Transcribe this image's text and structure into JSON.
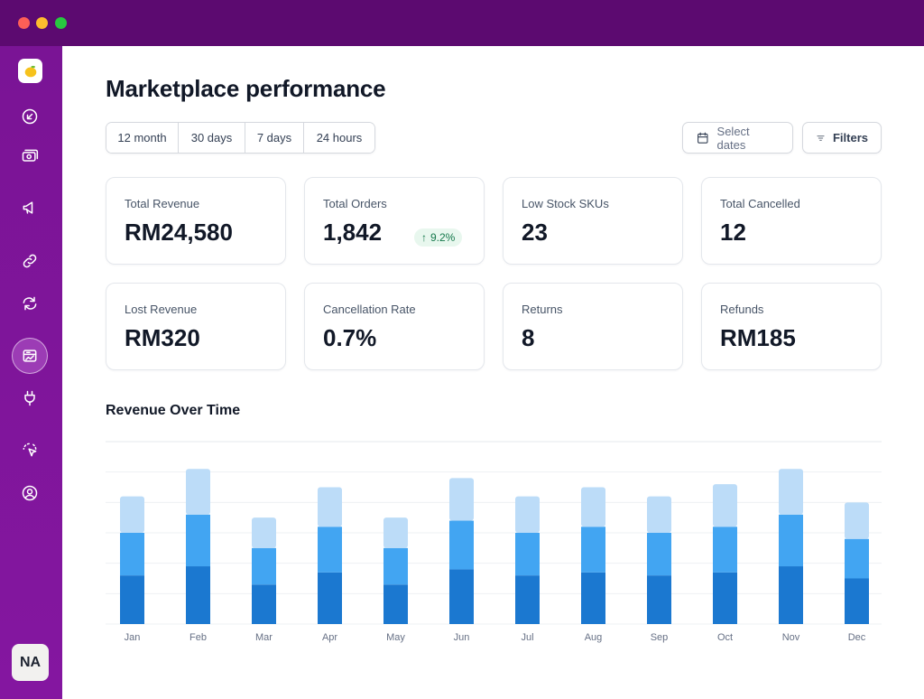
{
  "page": {
    "title": "Marketplace performance"
  },
  "user": {
    "initials": "NA"
  },
  "ranges": [
    "12 month",
    "30 days",
    "7 days",
    "24 hours"
  ],
  "actions": {
    "select_dates": "Select dates",
    "filters": "Filters"
  },
  "stats": [
    {
      "label": "Total Revenue",
      "value": "RM24,580"
    },
    {
      "label": "Total Orders",
      "value": "1,842",
      "change": "9.2%"
    },
    {
      "label": "Low Stock SKUs",
      "value": "23"
    },
    {
      "label": "Total Cancelled",
      "value": "12"
    },
    {
      "label": "Lost Revenue",
      "value": "RM320"
    },
    {
      "label": "Cancellation Rate",
      "value": "0.7%"
    },
    {
      "label": "Returns",
      "value": "8"
    },
    {
      "label": "Refunds",
      "value": "RM185"
    }
  ],
  "chart_section": {
    "title": "Revenue Over Time"
  },
  "colors": {
    "accent_purple": "#7a1495",
    "bar_dark": "#1b78d0",
    "bar_mid": "#42a5f2",
    "bar_light": "#bcdcf8",
    "positive": "#16794c"
  },
  "sidebar_icons": [
    "app-logo-icon",
    "arrow-down-left-icon",
    "banknote-icon",
    "megaphone-icon",
    "link-icon",
    "refresh-icon",
    "dashboard-icon",
    "plug-icon",
    "dashed-pointer-icon",
    "user-circle-icon"
  ],
  "chart_data": {
    "type": "bar",
    "stacked": true,
    "title": "Revenue Over Time",
    "categories": [
      "Jan",
      "Feb",
      "Mar",
      "Apr",
      "May",
      "Jun",
      "Jul",
      "Aug",
      "Sep",
      "Oct",
      "Nov",
      "Dec"
    ],
    "series": [
      {
        "values": [
          16,
          19,
          13,
          17,
          13,
          18,
          16,
          17,
          16,
          17,
          19,
          15
        ]
      },
      {
        "values": [
          14,
          17,
          12,
          15,
          12,
          16,
          14,
          15,
          14,
          15,
          17,
          13
        ]
      },
      {
        "values": [
          12,
          15,
          10,
          13,
          10,
          14,
          12,
          13,
          12,
          14,
          15,
          12
        ]
      }
    ],
    "ylim": [
      0,
      60
    ],
    "grid": true
  }
}
